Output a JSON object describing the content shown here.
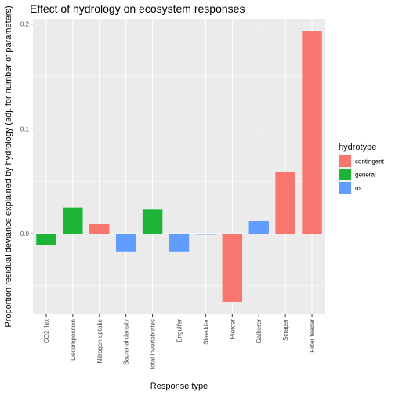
{
  "chart_data": {
    "type": "bar",
    "title": "Effect of hydrology on ecosystem responses",
    "xlabel": "Response type",
    "ylabel": "Proportion residual deviance explained by hydrology (adj. for number of parameters)",
    "ylim": [
      -0.077,
      0.205
    ],
    "yticks": [
      {
        "value": 0.2,
        "label": "0.2"
      },
      {
        "value": 0.1,
        "label": "0.1"
      },
      {
        "value": 0.0,
        "label": "0.0"
      }
    ],
    "grid": true,
    "categories": [
      "CO2 flux",
      "Decomposition",
      "Nitrogen uptake",
      "Bacterial density",
      "Total Invertebrates",
      "Engulfer",
      "Shredder",
      "Piercer",
      "Gatherer",
      "Scraper",
      "Filter feeder"
    ],
    "values": [
      -0.011,
      0.025,
      0.009,
      -0.017,
      0.023,
      -0.017,
      -0.001,
      -0.065,
      0.012,
      0.059,
      0.193
    ],
    "groups": [
      "general",
      "general",
      "contingent",
      "ns",
      "general",
      "ns",
      "ns",
      "contingent",
      "ns",
      "contingent",
      "contingent"
    ],
    "legend": {
      "title": "hydrotype",
      "position": "right",
      "entries": [
        {
          "key": "contingent",
          "label": "contingent",
          "color": "#f8766d"
        },
        {
          "key": "general",
          "label": "general",
          "color": "#1cb538"
        },
        {
          "key": "ns",
          "label": "ns",
          "color": "#619cff"
        }
      ]
    },
    "panel_color": "#ebebeb",
    "grid_color": "#ffffff"
  }
}
